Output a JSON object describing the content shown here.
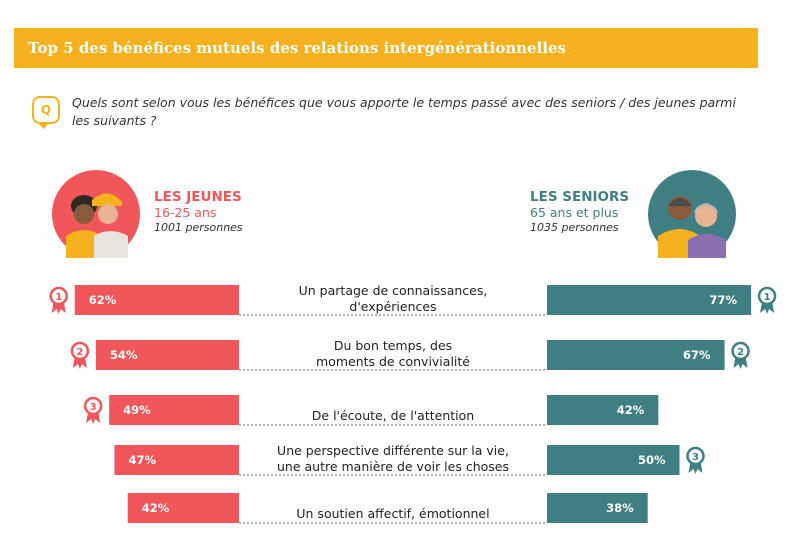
{
  "title": "Top 5 des bénéfices mutuels des relations intergénérationnelles",
  "question": {
    "icon": "speech-bubble-q-icon",
    "badge": "Q",
    "text": "Quels sont selon vous les bénéfices que vous apporte le temps passé avec des seniors / des jeunes parmi les suivants ?"
  },
  "groups": {
    "jeunes": {
      "name": "LES JEUNES",
      "age": "16-25 ans",
      "count": "1001 personnes",
      "color": "#f0565a"
    },
    "seniors": {
      "name": "LES SENIORS",
      "age": "65 ans et plus",
      "count": "1035 personnes",
      "color": "#3f7f84"
    }
  },
  "colors": {
    "accent": "#f6b21c",
    "jeunes": "#f0565a",
    "seniors": "#3f7f84",
    "avatar_jeunes_bg": "#f0565a",
    "avatar_seniors_bg": "#3f7f84"
  },
  "chart_data": {
    "type": "bar",
    "orientation": "diverging-horizontal",
    "categories": [
      [
        "Un partage de connaissances,",
        "d'expériences"
      ],
      [
        "Du bon temps, des",
        "moments de convivialité"
      ],
      [
        "De l'écoute, de l'attention"
      ],
      [
        "Une perspective différente sur la vie,",
        "une autre manière de voir les choses"
      ],
      [
        "Un soutien affectif, émotionnel"
      ]
    ],
    "series": [
      {
        "name": "LES JEUNES",
        "values": [
          62,
          54,
          49,
          47,
          42
        ],
        "value_labels": [
          "62%",
          "54%",
          "49%",
          "47%",
          "42%"
        ],
        "ranks": [
          "1",
          "2",
          "3",
          null,
          null
        ],
        "color": "#f0565a"
      },
      {
        "name": "LES SENIORS",
        "values": [
          77,
          67,
          42,
          50,
          38
        ],
        "value_labels": [
          "77%",
          "67%",
          "42%",
          "50%",
          "38%"
        ],
        "ranks": [
          "1",
          "2",
          null,
          "3",
          null
        ],
        "color": "#3f7f84"
      }
    ],
    "rank_icon": "ribbon-medal-icon"
  }
}
